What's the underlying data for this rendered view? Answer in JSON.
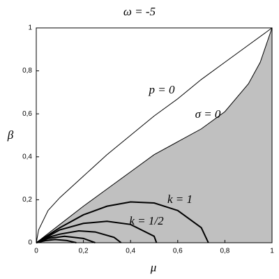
{
  "chart_data": {
    "type": "line",
    "title": "ω = -5",
    "x_label": "μ",
    "y_label": "β",
    "xlim": [
      0,
      1
    ],
    "ylim": [
      0,
      1
    ],
    "xticks": [
      0,
      {
        "value": 0.2,
        "label": "0,2"
      },
      {
        "value": 0.4,
        "label": "0,4"
      },
      {
        "value": 0.6,
        "label": "0,6"
      },
      {
        "value": 0.8,
        "label": "0,8"
      },
      1
    ],
    "yticks": [
      0,
      {
        "value": 0.2,
        "label": "0,2"
      },
      {
        "value": 0.4,
        "label": "0,4"
      },
      {
        "value": 0.6,
        "label": "0,6"
      },
      {
        "value": 0.8,
        "label": "0,8"
      },
      1
    ],
    "series": [
      {
        "name": "p = 0",
        "color": "#000000",
        "x": [
          0,
          0.01,
          0.05,
          0.1,
          0.2,
          0.3,
          0.4,
          0.5,
          0.6,
          0.7,
          0.8,
          0.9,
          1
        ],
        "values": [
          0,
          0.06,
          0.15,
          0.21,
          0.31,
          0.41,
          0.5,
          0.59,
          0.67,
          0.76,
          0.84,
          0.92,
          1
        ]
      },
      {
        "name": "σ = 0",
        "color": "#000000",
        "fill_color": "#c0c0c0",
        "x": [
          0,
          0.1,
          0.2,
          0.3,
          0.4,
          0.5,
          0.6,
          0.7,
          0.8,
          0.9,
          0.95,
          1
        ],
        "values": [
          0,
          0.085,
          0.17,
          0.25,
          0.33,
          0.41,
          0.47,
          0.53,
          0.61,
          0.74,
          0.84,
          1
        ]
      },
      {
        "name": "k = 1",
        "color": "#000000",
        "x": [
          0,
          0.1,
          0.2,
          0.3,
          0.4,
          0.5,
          0.6,
          0.7,
          0.73
        ],
        "values": [
          0,
          0.07,
          0.13,
          0.17,
          0.19,
          0.185,
          0.15,
          0.07,
          0
        ]
      },
      {
        "name": "k = 1/2",
        "color": "#000000",
        "x": [
          0,
          0.1,
          0.2,
          0.3,
          0.4,
          0.5,
          0.51
        ],
        "values": [
          0,
          0.06,
          0.09,
          0.1,
          0.085,
          0.03,
          0
        ]
      },
      {
        "color": "#000000",
        "x": [
          0,
          0.05,
          0.1,
          0.18,
          0.25,
          0.33,
          0.36
        ],
        "values": [
          0,
          0.025,
          0.04,
          0.055,
          0.05,
          0.025,
          0
        ]
      },
      {
        "color": "#000000",
        "x": [
          0,
          0.05,
          0.12,
          0.2,
          0.25
        ],
        "values": [
          0,
          0.02,
          0.03,
          0.02,
          0
        ]
      },
      {
        "color": "#000000",
        "x": [
          0,
          0.04,
          0.08,
          0.13,
          0.17
        ],
        "values": [
          0,
          0.01,
          0.015,
          0.01,
          0
        ]
      }
    ]
  }
}
